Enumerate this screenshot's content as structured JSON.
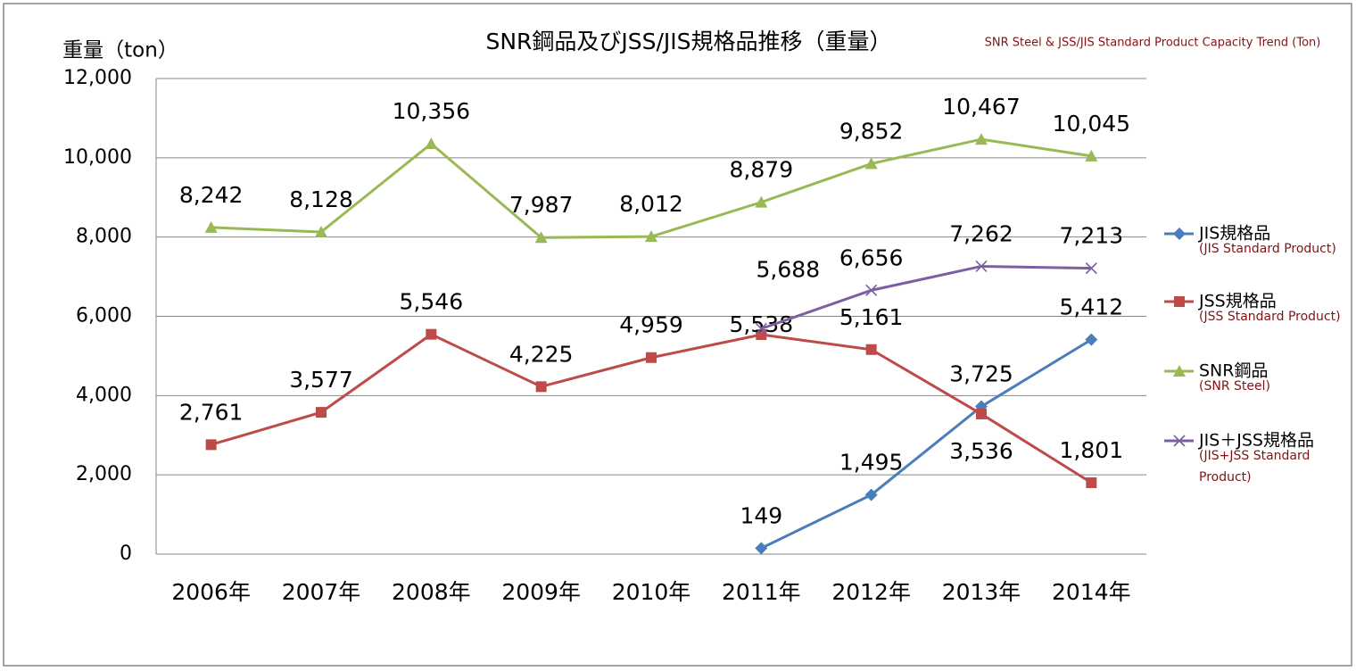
{
  "chart_data": {
    "type": "line",
    "title": "SNR鋼品及びJSS/JIS規格品推移（重量）",
    "subtitle": "SNR Steel & JSS/JIS Standard Product Capacity Trend (Ton)",
    "y_label": "重量（ton）",
    "categories": [
      "2006年",
      "2007年",
      "2008年",
      "2009年",
      "2010年",
      "2011年",
      "2012年",
      "2013年",
      "2014年"
    ],
    "ylim": [
      0,
      12000
    ],
    "yticks": [
      0,
      {
        "value": 2000,
        "label": "2,000"
      },
      {
        "value": 4000,
        "label": "4,000"
      },
      {
        "value": 6000,
        "label": "6,000"
      },
      {
        "value": 8000,
        "label": "8,000"
      },
      {
        "value": 10000,
        "label": "10,000"
      },
      {
        "value": 12000,
        "label": "12,000"
      }
    ],
    "grid": true,
    "legend": "right",
    "series": [
      {
        "name": "JIS規格品",
        "name_en": "(JIS Standard Product)",
        "color": "#4a7ebb",
        "marker": "diamond",
        "values": [
          null,
          null,
          null,
          null,
          null,
          149,
          1495,
          3725,
          5412
        ],
        "value_labels": [
          null,
          null,
          null,
          null,
          null,
          "149",
          "1,495",
          "3,725",
          "5,412"
        ]
      },
      {
        "name": "JSS規格品",
        "name_en": "(JSS Standard Product)",
        "color": "#be4b48",
        "marker": "square",
        "values": [
          2761,
          3577,
          5546,
          4225,
          4959,
          5538,
          5161,
          3536,
          1801
        ],
        "value_labels": [
          "2,761",
          "3,577",
          "5,546",
          "4,225",
          "4,959",
          "5,538",
          "5,161",
          "3,536",
          "1,801"
        ]
      },
      {
        "name": "SNR鋼品",
        "name_en": "(SNR Steel)",
        "color": "#98b954",
        "marker": "triangle",
        "values": [
          8242,
          8128,
          10356,
          7987,
          8012,
          8879,
          9852,
          10467,
          10045
        ],
        "value_labels": [
          "8,242",
          "8,128",
          "10,356",
          "7,987",
          "8,012",
          "8,879",
          "9,852",
          "10,467",
          "10,045"
        ]
      },
      {
        "name": "JIS＋JSS規格品",
        "name_en": "(JIS+JSS Standard Product)",
        "color": "#7d5fa0",
        "marker": "x",
        "values": [
          null,
          null,
          null,
          null,
          null,
          5688,
          6656,
          7262,
          7213
        ],
        "value_labels": [
          null,
          null,
          null,
          null,
          null,
          "5,688",
          "6,656",
          "7,262",
          "7,213"
        ]
      }
    ]
  }
}
